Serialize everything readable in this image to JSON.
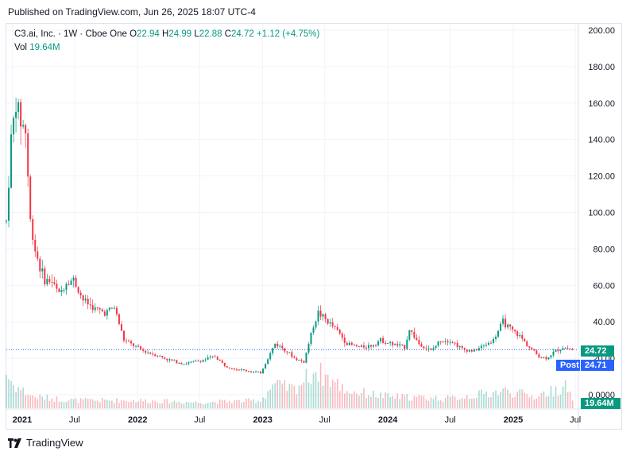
{
  "header": {
    "published": "Published on TradingView.com, Jun 26, 2025 18:07 UTC-4"
  },
  "legend": {
    "symbol": "C3.ai, Inc. · 1W · Cboe One",
    "open_label": "O",
    "open": "22.94",
    "high_label": "H",
    "high": "24.99",
    "low_label": "L",
    "low": "22.88",
    "close_label": "C",
    "close": "24.72",
    "change": "+1.12 (+4.75%)",
    "vol_label": "Vol",
    "vol": "19.64M"
  },
  "tags": {
    "last_price": "24.72",
    "post_label": "Post",
    "post_price": "24.71",
    "volume": "19.64M"
  },
  "footer": {
    "brand": "TradingView"
  },
  "colors": {
    "up": "#089981",
    "down": "#f23645",
    "post": "#2962ff",
    "grid": "#f0f3fa"
  },
  "chart_data": {
    "type": "candlestick",
    "title": "C3.ai, Inc. · 1W · Cboe One",
    "ylim": [
      0,
      200
    ],
    "y_ticks": [
      "200.00",
      "180.00",
      "160.00",
      "140.00",
      "120.00",
      "100.00",
      "80.00",
      "60.00",
      "40.00",
      "20.00",
      "0.0000"
    ],
    "y_tick_values": [
      200,
      180,
      160,
      140,
      120,
      100,
      80,
      60,
      40,
      20,
      0
    ],
    "x_ticks": [
      "2021",
      "Jul",
      "2022",
      "Jul",
      "2023",
      "Jul",
      "2024",
      "Jul",
      "2025",
      "Jul"
    ],
    "x_tick_bold": [
      true,
      false,
      true,
      false,
      true,
      false,
      true,
      false,
      true,
      false
    ],
    "x_start": "2020-12-14",
    "x_end": "2025-07-10",
    "x_tick_dates": [
      "2021-01-01",
      "2021-07-01",
      "2022-01-01",
      "2022-07-01",
      "2023-01-01",
      "2023-07-01",
      "2024-01-01",
      "2024-07-01",
      "2025-01-01",
      "2025-07-01"
    ],
    "price_path": [
      [
        "2020-12-14",
        95
      ],
      [
        "2020-12-28",
        140
      ],
      [
        "2021-01-11",
        160
      ],
      [
        "2021-01-25",
        150
      ],
      [
        "2021-02-08",
        145
      ],
      [
        "2021-02-22",
        95
      ],
      [
        "2021-03-08",
        80
      ],
      [
        "2021-03-22",
        70
      ],
      [
        "2021-04-05",
        63
      ],
      [
        "2021-04-26",
        62
      ],
      [
        "2021-05-17",
        55
      ],
      [
        "2021-06-07",
        62
      ],
      [
        "2021-06-28",
        63
      ],
      [
        "2021-07-26",
        52
      ],
      [
        "2021-08-30",
        47
      ],
      [
        "2021-09-27",
        45
      ],
      [
        "2021-10-25",
        48
      ],
      [
        "2021-11-22",
        30
      ],
      [
        "2021-12-20",
        27
      ],
      [
        "2022-01-17",
        24
      ],
      [
        "2022-02-21",
        22
      ],
      [
        "2022-04-04",
        19
      ],
      [
        "2022-05-16",
        17
      ],
      [
        "2022-06-13",
        18
      ],
      [
        "2022-07-11",
        19
      ],
      [
        "2022-08-15",
        21
      ],
      [
        "2022-09-12",
        16
      ],
      [
        "2022-10-17",
        14
      ],
      [
        "2022-11-21",
        13
      ],
      [
        "2022-12-26",
        12
      ],
      [
        "2023-01-16",
        20
      ],
      [
        "2023-02-06",
        28
      ],
      [
        "2023-03-06",
        25
      ],
      [
        "2023-04-03",
        20
      ],
      [
        "2023-05-01",
        18
      ],
      [
        "2023-05-29",
        38
      ],
      [
        "2023-06-12",
        45
      ],
      [
        "2023-07-10",
        40
      ],
      [
        "2023-08-07",
        35
      ],
      [
        "2023-09-04",
        28
      ],
      [
        "2023-10-09",
        26
      ],
      [
        "2023-11-13",
        27
      ],
      [
        "2023-12-11",
        30
      ],
      [
        "2024-01-08",
        28
      ],
      [
        "2024-02-19",
        26
      ],
      [
        "2024-03-04",
        36
      ],
      [
        "2024-04-01",
        28
      ],
      [
        "2024-05-06",
        24
      ],
      [
        "2024-06-03",
        30
      ],
      [
        "2024-07-01",
        30
      ],
      [
        "2024-08-05",
        25
      ],
      [
        "2024-09-09",
        24
      ],
      [
        "2024-10-07",
        27
      ],
      [
        "2024-11-04",
        30
      ],
      [
        "2024-12-02",
        40
      ],
      [
        "2024-12-23",
        36
      ],
      [
        "2025-01-20",
        32
      ],
      [
        "2025-02-17",
        26
      ],
      [
        "2025-03-17",
        21
      ],
      [
        "2025-04-07",
        20
      ],
      [
        "2025-05-05",
        24
      ],
      [
        "2025-05-26",
        26
      ],
      [
        "2025-06-23",
        24.72
      ]
    ],
    "volume_path": [
      [
        "2020-12-14",
        0.9
      ],
      [
        "2021-01-04",
        0.6
      ],
      [
        "2021-03-01",
        0.3
      ],
      [
        "2021-07-01",
        0.2
      ],
      [
        "2022-01-01",
        0.2
      ],
      [
        "2022-07-01",
        0.15
      ],
      [
        "2022-12-26",
        0.2
      ],
      [
        "2023-01-30",
        0.6
      ],
      [
        "2023-04-03",
        0.5
      ],
      [
        "2023-06-05",
        1.0
      ],
      [
        "2023-09-04",
        0.45
      ],
      [
        "2024-01-01",
        0.3
      ],
      [
        "2024-07-01",
        0.25
      ],
      [
        "2024-12-09",
        0.45
      ],
      [
        "2025-03-03",
        0.3
      ],
      [
        "2025-06-02",
        0.55
      ],
      [
        "2025-06-23",
        0.3
      ]
    ],
    "last_close": 24.72,
    "post_price": 24.71,
    "volume_last": "19.64M"
  }
}
